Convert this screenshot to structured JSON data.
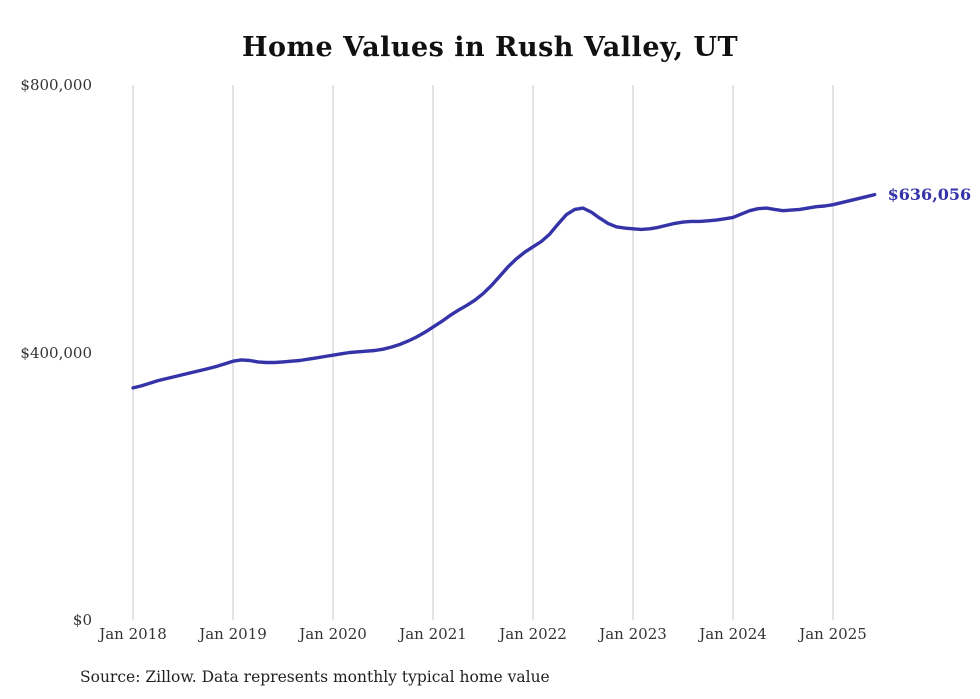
{
  "title": "Home Values in Rush Valley, UT",
  "annotation": {
    "end_value_label": "$636,056"
  },
  "footer": {
    "source": "Source: Zillow. Data represents monthly typical home value"
  },
  "chart_data": {
    "type": "line",
    "title": "Home Values in Rush Valley, UT",
    "series_name": "Monthly typical home value",
    "line_color": "#3533a8",
    "grid_color": "#c9c9c9",
    "ylim": [
      0,
      800000
    ],
    "grid": "vertical-only",
    "legend": "none",
    "x_tick_labels": [
      "Jan 2018",
      "Jan 2019",
      "Jan 2020",
      "Jan 2021",
      "Jan 2022",
      "Jan 2023",
      "Jan 2024",
      "Jan 2025"
    ],
    "y_ticks": [
      {
        "label": "$0",
        "value": 0
      },
      {
        "label": "$400,000",
        "value": 400000
      },
      {
        "label": "$800,000",
        "value": 800000
      }
    ],
    "months": [
      "2018-01",
      "2018-02",
      "2018-03",
      "2018-04",
      "2018-05",
      "2018-06",
      "2018-07",
      "2018-08",
      "2018-09",
      "2018-10",
      "2018-11",
      "2018-12",
      "2019-01",
      "2019-02",
      "2019-03",
      "2019-04",
      "2019-05",
      "2019-06",
      "2019-07",
      "2019-08",
      "2019-09",
      "2019-10",
      "2019-11",
      "2019-12",
      "2020-01",
      "2020-02",
      "2020-03",
      "2020-04",
      "2020-05",
      "2020-06",
      "2020-07",
      "2020-08",
      "2020-09",
      "2020-10",
      "2020-11",
      "2020-12",
      "2021-01",
      "2021-02",
      "2021-03",
      "2021-04",
      "2021-05",
      "2021-06",
      "2021-07",
      "2021-08",
      "2021-09",
      "2021-10",
      "2021-11",
      "2021-12",
      "2022-01",
      "2022-02",
      "2022-03",
      "2022-04",
      "2022-05",
      "2022-06",
      "2022-07",
      "2022-08",
      "2022-09",
      "2022-10",
      "2022-11",
      "2022-12",
      "2023-01",
      "2023-02",
      "2023-03",
      "2023-04",
      "2023-05",
      "2023-06",
      "2023-07",
      "2023-08",
      "2023-09",
      "2023-10",
      "2023-11",
      "2023-12",
      "2024-01",
      "2024-02",
      "2024-03",
      "2024-04",
      "2024-05",
      "2024-06",
      "2024-07",
      "2024-08",
      "2024-09",
      "2024-10",
      "2024-11",
      "2024-12",
      "2025-01",
      "2025-02",
      "2025-03",
      "2025-04",
      "2025-05",
      "2025-06"
    ],
    "values": [
      347000,
      350000,
      354000,
      358000,
      361000,
      364000,
      367000,
      370000,
      373000,
      376000,
      379000,
      383000,
      387000,
      389000,
      388000,
      386000,
      385000,
      385000,
      386000,
      387000,
      388000,
      390000,
      392000,
      394000,
      396000,
      398000,
      400000,
      401000,
      402000,
      403000,
      405000,
      408000,
      412000,
      417000,
      423000,
      430000,
      438000,
      446000,
      455000,
      463000,
      470000,
      478000,
      488000,
      500000,
      514000,
      528000,
      540000,
      550000,
      558000,
      566000,
      577000,
      592000,
      606000,
      614000,
      616000,
      610000,
      601000,
      593000,
      588000,
      586000,
      585000,
      584000,
      585000,
      587000,
      590000,
      593000,
      595000,
      596000,
      596000,
      597000,
      598000,
      600000,
      602000,
      607000,
      612000,
      615000,
      616000,
      614000,
      612000,
      613000,
      614000,
      616000,
      618000,
      619000,
      621000,
      624000,
      627000,
      630000,
      633000,
      636056
    ]
  }
}
